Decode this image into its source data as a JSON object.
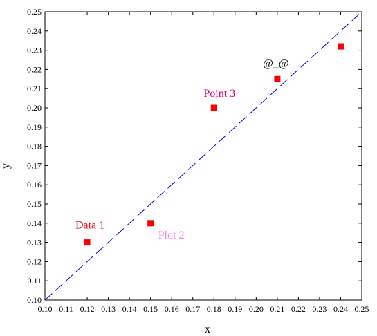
{
  "chart_data": {
    "type": "scatter",
    "title": "",
    "xlabel": "x",
    "ylabel": "y",
    "xlim": [
      0.1,
      0.25
    ],
    "ylim": [
      0.1,
      0.25
    ],
    "x_ticks": [
      "0.10",
      "0.11",
      "0.12",
      "0.13",
      "0.14",
      "0.15",
      "0.16",
      "0.17",
      "0.18",
      "0.19",
      "0.20",
      "0.21",
      "0.22",
      "0.23",
      "0.24",
      "0.25"
    ],
    "y_ticks": [
      "0.10",
      "0.11",
      "0.12",
      "0.13",
      "0.14",
      "0.15",
      "0.16",
      "0.17",
      "0.18",
      "0.19",
      "0.20",
      "0.21",
      "0.22",
      "0.23",
      "0.24",
      "0.25"
    ],
    "grid": false,
    "points": [
      {
        "x": 0.12,
        "y": 0.13,
        "label": "Data 1",
        "label_color": "#e8121c",
        "label_anchor": "above-left"
      },
      {
        "x": 0.15,
        "y": 0.14,
        "label": "Plot 2",
        "label_color": "#ee82ee",
        "label_anchor": "below-right"
      },
      {
        "x": 0.18,
        "y": 0.2,
        "label": "Point 3",
        "label_color": "#e0007a",
        "label_anchor": "above"
      },
      {
        "x": 0.21,
        "y": 0.215,
        "label": "@_@",
        "label_color": "#000000",
        "label_anchor": "above-left"
      },
      {
        "x": 0.24,
        "y": 0.232,
        "label": "",
        "label_color": "#000000",
        "label_anchor": "none"
      }
    ],
    "marker_color": "#ff0000",
    "marker_shape": "square",
    "reference_line": {
      "x": [
        0.1,
        0.25
      ],
      "y": [
        0.1,
        0.25
      ],
      "color": "#0000cc",
      "style": "dashed"
    }
  }
}
